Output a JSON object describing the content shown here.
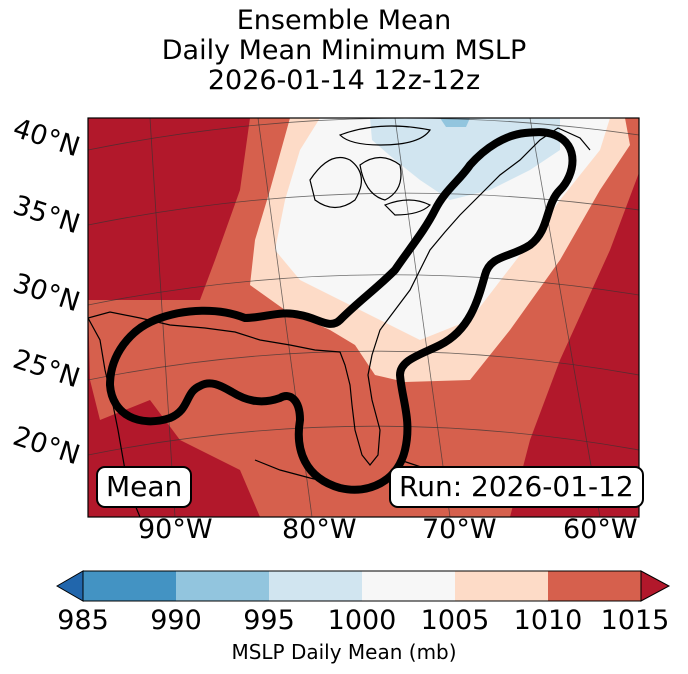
{
  "title": {
    "line1": "Ensemble Mean",
    "line2": "Daily Mean Minimum MSLP",
    "line3": "2026-01-14 12z-12z"
  },
  "map": {
    "latitude_labels": [
      "40°N",
      "35°N",
      "30°N",
      "25°N",
      "20°N"
    ],
    "longitude_labels": [
      "90°W",
      "80°W",
      "70°W",
      "60°W"
    ],
    "field": "MSLP daily mean (mb), filled contours",
    "highlight": "thick black outline around Gulf of Mexico and US East Coast",
    "inset_left": "Mean",
    "inset_right": "Run: 2026-01-12"
  },
  "colorbar": {
    "ticks": [
      "985",
      "990",
      "995",
      "1000",
      "1005",
      "1010",
      "1015"
    ],
    "label": "MSLP Daily Mean (mb)",
    "colors": [
      "#2166ac",
      "#4393c3",
      "#92c5de",
      "#d1e5f0",
      "#f7f7f7",
      "#fddbc7",
      "#d6604d",
      "#b2182b"
    ],
    "extend": "both"
  },
  "palette": {
    "c985": "#4393c3",
    "c990": "#92c5de",
    "c995": "#d1e5f0",
    "c1000": "#f7f7f7",
    "c1005": "#fddbc7",
    "c1010": "#d6604d",
    "c1015": "#b2182b"
  }
}
